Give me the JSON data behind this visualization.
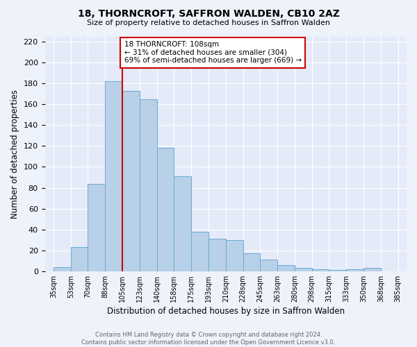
{
  "title": "18, THORNCROFT, SAFFRON WALDEN, CB10 2AZ",
  "subtitle": "Size of property relative to detached houses in Saffron Walden",
  "xlabel": "Distribution of detached houses by size in Saffron Walden",
  "ylabel": "Number of detached properties",
  "footer_line1": "Contains HM Land Registry data © Crown copyright and database right 2024.",
  "footer_line2": "Contains public sector information licensed under the Open Government Licence v3.0.",
  "categories": [
    "35sqm",
    "53sqm",
    "70sqm",
    "88sqm",
    "105sqm",
    "123sqm",
    "140sqm",
    "158sqm",
    "175sqm",
    "193sqm",
    "210sqm",
    "228sqm",
    "245sqm",
    "263sqm",
    "280sqm",
    "298sqm",
    "315sqm",
    "333sqm",
    "350sqm",
    "368sqm",
    "385sqm"
  ],
  "bar_heights": [
    4,
    23,
    84,
    182,
    173,
    165,
    118,
    91,
    38,
    31,
    30,
    17,
    11,
    6,
    3,
    2,
    1,
    2,
    3,
    0
  ],
  "bar_color": "#b8d0e8",
  "bar_edge_color": "#6aaad4",
  "vline_color": "#cc0000",
  "annotation_box_color": "#ffffff",
  "annotation_box_edge": "#cc0000",
  "marker_label": "18 THORNCROFT: 108sqm",
  "annotation_line1": "← 31% of detached houses are smaller (304)",
  "annotation_line2": "69% of semi-detached houses are larger (669) →",
  "ylim": [
    0,
    225
  ],
  "background_color": "#eef2fb",
  "plot_background": "#e4eaf8",
  "grid_color": "#ffffff"
}
